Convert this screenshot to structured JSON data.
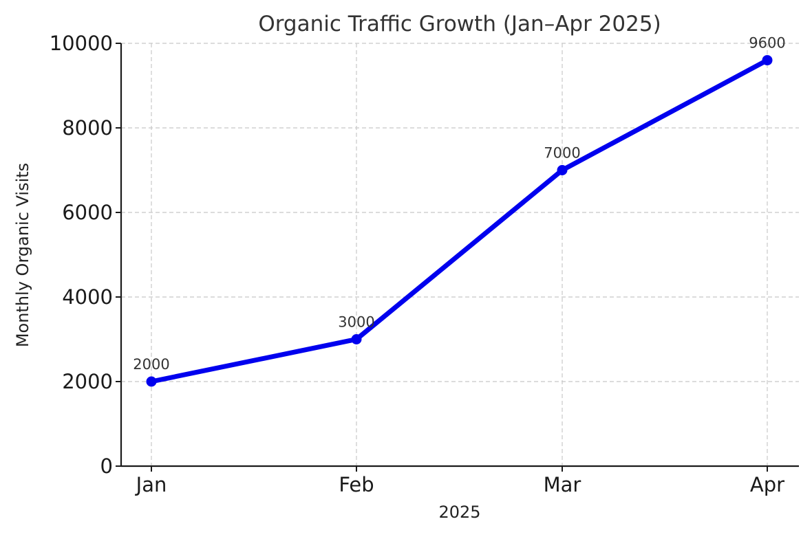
{
  "chart_data": {
    "type": "line",
    "title": "Organic Traffic Growth (Jan–Apr 2025)",
    "xlabel": "2025",
    "ylabel": "Monthly Organic Visits",
    "categories": [
      "Jan",
      "Feb",
      "Mar",
      "Apr"
    ],
    "series": [
      {
        "name": "Monthly Organic Visits",
        "values": [
          2000,
          3000,
          7000,
          9600
        ],
        "color": "#0000ee"
      }
    ],
    "data_labels": [
      "2000",
      "3000",
      "7000",
      "9600"
    ],
    "ylim": [
      0,
      10000
    ],
    "yticks": [
      0,
      2000,
      4000,
      6000,
      8000,
      10000
    ],
    "ytick_labels": [
      "0",
      "2000",
      "4000",
      "6000",
      "8000",
      "10000"
    ],
    "grid": true,
    "grid_style": "dashed"
  }
}
